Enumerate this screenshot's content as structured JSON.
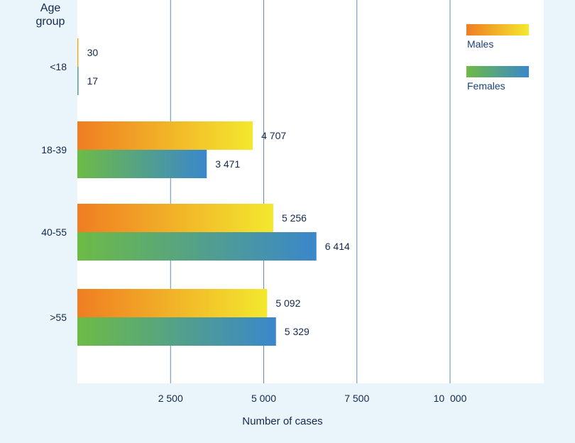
{
  "chart_data": {
    "type": "bar",
    "orientation": "horizontal",
    "ylabel": "Age\ngroup",
    "xlabel": "Number of cases",
    "categories": [
      "<18",
      "18-39",
      "40-55",
      ">55"
    ],
    "series": [
      {
        "name": "Males",
        "values": [
          30,
          4707,
          5256,
          5092
        ],
        "labels": [
          "30",
          "4 707",
          "5 256",
          "5 092"
        ],
        "gradient": [
          "#ef7d22",
          "#f3e82e"
        ]
      },
      {
        "name": "Females",
        "values": [
          17,
          3471,
          6414,
          5329
        ],
        "labels": [
          "17",
          "3 471",
          "6 414",
          "5 329"
        ],
        "gradient": [
          "#6dbb45",
          "#3a87cc"
        ]
      }
    ],
    "xlim": [
      0,
      12500
    ],
    "xticks": [
      {
        "value": 2500,
        "label": "2 500"
      },
      {
        "value": 5000,
        "label": "5 000"
      },
      {
        "value": 7500,
        "label": "7 500"
      },
      {
        "value": 10000,
        "label": "10  000"
      }
    ],
    "grid": true,
    "legend_position": "top-right",
    "colors": {
      "background": "#eaf4fb",
      "plot_area": "#ffffff",
      "gridline": "#5f8fb8",
      "text": "#13294b"
    }
  }
}
